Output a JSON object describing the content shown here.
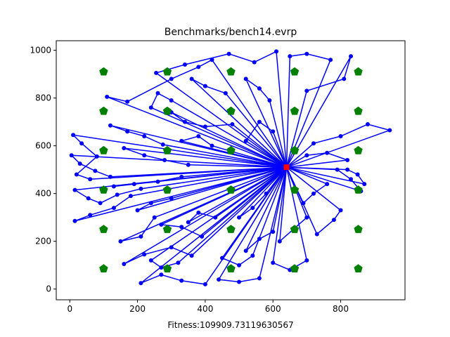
{
  "chart_data": {
    "type": "line",
    "title": "Benchmarks/bench14.evrp",
    "xlabel": "Fitness:109909.73119630567",
    "ylabel": "",
    "xlim": [
      -40,
      990
    ],
    "ylim": [
      -45,
      1040
    ],
    "x_ticks": [
      0,
      200,
      400,
      600,
      800
    ],
    "y_ticks": [
      0,
      200,
      400,
      600,
      800,
      1000
    ],
    "x_tick_labels": [
      "0",
      "200",
      "400",
      "600",
      "800"
    ],
    "y_tick_labels": [
      "0",
      "200",
      "400",
      "600",
      "800",
      "1000"
    ],
    "grid": false,
    "colors": {
      "route": "#0000ff",
      "station": "#008000",
      "depot": "#ff0000"
    },
    "depot": {
      "x": 640,
      "y": 510
    },
    "stations": [
      {
        "x": 100,
        "y": 910
      },
      {
        "x": 288,
        "y": 910
      },
      {
        "x": 476,
        "y": 910
      },
      {
        "x": 664,
        "y": 910
      },
      {
        "x": 852,
        "y": 910
      },
      {
        "x": 100,
        "y": 745
      },
      {
        "x": 288,
        "y": 745
      },
      {
        "x": 476,
        "y": 745
      },
      {
        "x": 664,
        "y": 745
      },
      {
        "x": 852,
        "y": 745
      },
      {
        "x": 100,
        "y": 580
      },
      {
        "x": 288,
        "y": 580
      },
      {
        "x": 476,
        "y": 580
      },
      {
        "x": 664,
        "y": 580
      },
      {
        "x": 852,
        "y": 580
      },
      {
        "x": 100,
        "y": 415
      },
      {
        "x": 288,
        "y": 415
      },
      {
        "x": 476,
        "y": 415
      },
      {
        "x": 664,
        "y": 415
      },
      {
        "x": 852,
        "y": 415
      },
      {
        "x": 100,
        "y": 250
      },
      {
        "x": 288,
        "y": 250
      },
      {
        "x": 476,
        "y": 250
      },
      {
        "x": 664,
        "y": 250
      },
      {
        "x": 852,
        "y": 250
      },
      {
        "x": 100,
        "y": 85
      },
      {
        "x": 288,
        "y": 85
      },
      {
        "x": 476,
        "y": 85
      },
      {
        "x": 664,
        "y": 85
      },
      {
        "x": 852,
        "y": 85
      }
    ],
    "routes": [
      [
        [
          640,
          510
        ],
        [
          110,
          805
        ],
        [
          170,
          785
        ],
        [
          300,
          880
        ],
        [
          380,
          930
        ],
        [
          420,
          960
        ],
        [
          640,
          510
        ]
      ],
      [
        [
          640,
          510
        ],
        [
          610,
          995
        ],
        [
          545,
          950
        ],
        [
          470,
          985
        ],
        [
          340,
          940
        ],
        [
          255,
          905
        ],
        [
          640,
          510
        ]
      ],
      [
        [
          640,
          510
        ],
        [
          650,
          975
        ],
        [
          700,
          985
        ],
        [
          770,
          960
        ],
        [
          640,
          510
        ]
      ],
      [
        [
          640,
          510
        ],
        [
          830,
          975
        ],
        [
          810,
          880
        ],
        [
          700,
          830
        ],
        [
          640,
          510
        ]
      ],
      [
        [
          640,
          510
        ],
        [
          945,
          665
        ],
        [
          880,
          690
        ],
        [
          800,
          640
        ],
        [
          720,
          610
        ],
        [
          640,
          510
        ]
      ],
      [
        [
          640,
          510
        ],
        [
          10,
          645
        ],
        [
          35,
          610
        ],
        [
          80,
          555
        ],
        [
          20,
          480
        ],
        [
          60,
          460
        ],
        [
          640,
          510
        ]
      ],
      [
        [
          640,
          510
        ],
        [
          5,
          560
        ],
        [
          30,
          525
        ],
        [
          75,
          495
        ],
        [
          120,
          470
        ],
        [
          640,
          510
        ]
      ],
      [
        [
          640,
          510
        ],
        [
          15,
          415
        ],
        [
          55,
          380
        ],
        [
          90,
          360
        ],
        [
          140,
          395
        ],
        [
          210,
          420
        ],
        [
          640,
          510
        ]
      ],
      [
        [
          640,
          510
        ],
        [
          15,
          285
        ],
        [
          60,
          310
        ],
        [
          130,
          340
        ],
        [
          180,
          390
        ],
        [
          640,
          510
        ]
      ],
      [
        [
          640,
          510
        ],
        [
          120,
          685
        ],
        [
          170,
          660
        ],
        [
          220,
          640
        ],
        [
          275,
          605
        ],
        [
          640,
          510
        ]
      ],
      [
        [
          640,
          510
        ],
        [
          210,
          25
        ],
        [
          270,
          60
        ],
        [
          330,
          35
        ],
        [
          400,
          20
        ],
        [
          640,
          510
        ]
      ],
      [
        [
          640,
          510
        ],
        [
          440,
          40
        ],
        [
          500,
          30
        ],
        [
          560,
          45
        ],
        [
          640,
          510
        ]
      ],
      [
        [
          640,
          510
        ],
        [
          160,
          105
        ],
        [
          220,
          145
        ],
        [
          300,
          175
        ],
        [
          360,
          140
        ],
        [
          640,
          510
        ]
      ],
      [
        [
          640,
          510
        ],
        [
          600,
          110
        ],
        [
          650,
          80
        ],
        [
          700,
          120
        ],
        [
          640,
          510
        ]
      ],
      [
        [
          640,
          510
        ],
        [
          730,
          230
        ],
        [
          780,
          290
        ],
        [
          800,
          330
        ],
        [
          640,
          510
        ]
      ],
      [
        [
          640,
          510
        ],
        [
          860,
          410
        ],
        [
          830,
          460
        ],
        [
          790,
          500
        ],
        [
          640,
          510
        ]
      ],
      [
        [
          640,
          510
        ],
        [
          820,
          540
        ],
        [
          760,
          570
        ],
        [
          700,
          560
        ],
        [
          640,
          510
        ]
      ],
      [
        [
          640,
          510
        ],
        [
          480,
          690
        ],
        [
          400,
          680
        ],
        [
          340,
          700
        ],
        [
          300,
          740
        ],
        [
          640,
          510
        ]
      ],
      [
        [
          640,
          510
        ],
        [
          460,
          820
        ],
        [
          400,
          850
        ],
        [
          360,
          880
        ],
        [
          640,
          510
        ]
      ],
      [
        [
          640,
          510
        ],
        [
          520,
          880
        ],
        [
          560,
          840
        ],
        [
          590,
          790
        ],
        [
          640,
          510
        ]
      ],
      [
        [
          640,
          510
        ],
        [
          250,
          300
        ],
        [
          210,
          220
        ],
        [
          150,
          200
        ],
        [
          640,
          510
        ]
      ],
      [
        [
          640,
          510
        ],
        [
          270,
          270
        ],
        [
          330,
          260
        ],
        [
          390,
          220
        ],
        [
          640,
          510
        ]
      ],
      [
        [
          640,
          510
        ],
        [
          300,
          380
        ],
        [
          240,
          360
        ],
        [
          200,
          330
        ],
        [
          640,
          510
        ]
      ],
      [
        [
          640,
          510
        ],
        [
          520,
          160
        ],
        [
          560,
          210
        ],
        [
          600,
          240
        ],
        [
          640,
          510
        ]
      ],
      [
        [
          640,
          510
        ],
        [
          450,
          130
        ],
        [
          500,
          100
        ],
        [
          540,
          140
        ],
        [
          640,
          510
        ]
      ],
      [
        [
          640,
          510
        ],
        [
          700,
          300
        ],
        [
          660,
          250
        ],
        [
          620,
          200
        ],
        [
          640,
          510
        ]
      ],
      [
        [
          640,
          510
        ],
        [
          350,
          520
        ],
        [
          280,
          540
        ],
        [
          220,
          560
        ],
        [
          160,
          590
        ],
        [
          640,
          510
        ]
      ],
      [
        [
          640,
          510
        ],
        [
          330,
          470
        ],
        [
          260,
          450
        ],
        [
          190,
          440
        ],
        [
          130,
          430
        ],
        [
          640,
          510
        ]
      ],
      [
        [
          640,
          510
        ],
        [
          420,
          600
        ],
        [
          380,
          640
        ],
        [
          330,
          620
        ],
        [
          640,
          510
        ]
      ],
      [
        [
          640,
          510
        ],
        [
          430,
          300
        ],
        [
          380,
          320
        ],
        [
          350,
          280
        ],
        [
          640,
          510
        ]
      ],
      [
        [
          640,
          510
        ],
        [
          760,
          440
        ],
        [
          720,
          400
        ],
        [
          690,
          360
        ],
        [
          640,
          510
        ]
      ],
      [
        [
          640,
          510
        ],
        [
          870,
          440
        ],
        [
          850,
          480
        ],
        [
          820,
          500
        ],
        [
          640,
          510
        ]
      ],
      [
        [
          640,
          510
        ],
        [
          580,
          400
        ],
        [
          540,
          340
        ],
        [
          500,
          300
        ],
        [
          640,
          510
        ]
      ],
      [
        [
          640,
          510
        ],
        [
          520,
          620
        ],
        [
          560,
          700
        ],
        [
          600,
          660
        ],
        [
          640,
          510
        ]
      ],
      [
        [
          640,
          510
        ],
        [
          240,
          760
        ],
        [
          260,
          820
        ],
        [
          300,
          790
        ],
        [
          640,
          510
        ]
      ],
      [
        [
          640,
          510
        ],
        [
          320,
          110
        ],
        [
          270,
          90
        ],
        [
          240,
          120
        ],
        [
          640,
          510
        ]
      ]
    ]
  }
}
